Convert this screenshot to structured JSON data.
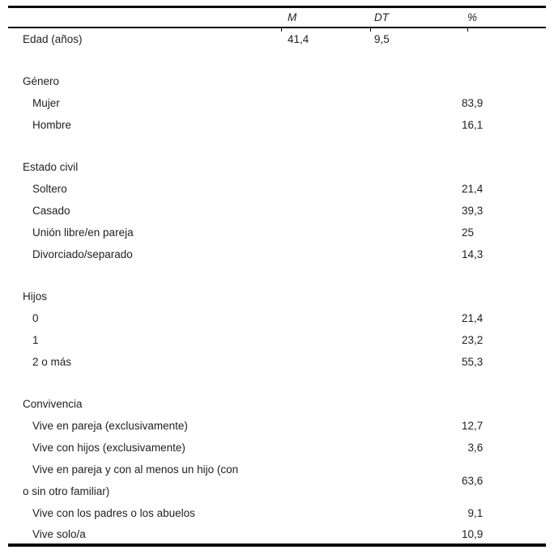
{
  "table": {
    "header": {
      "m": "M",
      "dt": "DT",
      "pct": "%"
    },
    "rows": [
      {
        "label": "Edad (años)",
        "m": "41,4",
        "dt": "9,5"
      },
      {
        "label": "Género"
      },
      {
        "label": "Mujer",
        "pct": "83,9"
      },
      {
        "label": "Hombre",
        "pct": "16,1"
      },
      {
        "label": "Estado civil"
      },
      {
        "label": "Soltero",
        "pct": "21,4"
      },
      {
        "label": "Casado",
        "pct": "39,3"
      },
      {
        "label": "Unión libre/en pareja",
        "pct": "25"
      },
      {
        "label": "Divorciado/separado",
        "pct": "14,3"
      },
      {
        "label": "Hijos"
      },
      {
        "label": "0",
        "pct": "21,4"
      },
      {
        "label": "1",
        "pct": "23,2"
      },
      {
        "label": "2 o más",
        "pct": "55,3"
      },
      {
        "label": "Convivencia"
      },
      {
        "label": "Vive en pareja (exclusivamente)",
        "pct": "12,7"
      },
      {
        "label": "Vive con hijos (exclusivamente)",
        "pct": "3,6"
      },
      {
        "label": "Vive en pareja y con al menos un hijo (con",
        "label2": "o sin otro familiar)",
        "pct": "63,6"
      },
      {
        "label": "Vive con los padres o los abuelos",
        "pct": "9,1"
      },
      {
        "label": "Vive solo/a",
        "pct": "10,9"
      }
    ]
  }
}
